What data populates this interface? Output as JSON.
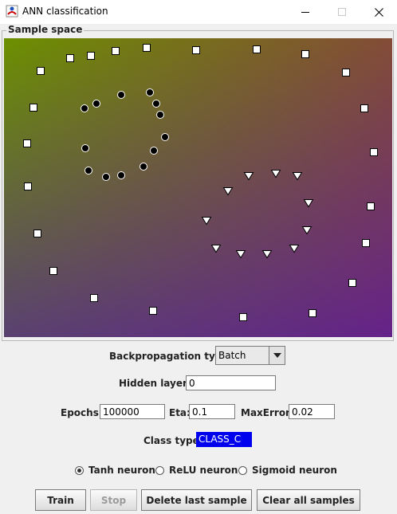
{
  "window": {
    "title": "ANN classification",
    "icon": "java-app-icon",
    "controls": [
      "minimize-icon",
      "maximize-icon",
      "close-icon"
    ]
  },
  "sample_panel": {
    "title": "Sample space",
    "gradient_colors": [
      "#6c9000",
      "#a02050",
      "#4b00cd"
    ],
    "markers": {
      "class_a": "black-dot",
      "class_b": "white-triangle",
      "class_c": "white-square"
    }
  },
  "controls": {
    "backprop_label": "Backpropagation type:",
    "backprop_value": "Batch",
    "hidden_layers_label": "Hidden layers:",
    "hidden_layers_value": "0",
    "epochs_label": "Epochs:",
    "epochs_value": "100000",
    "eta_label": "Eta:",
    "eta_value": "0.1",
    "max_error_label": "MaxError:",
    "max_error_value": "0.02",
    "class_type_label": "Class type:",
    "class_type_value": "CLASS_C",
    "neurons": [
      {
        "label": "Tanh neuron",
        "selected": true
      },
      {
        "label": "ReLU neuron",
        "selected": false
      },
      {
        "label": "Sigmoid neuron",
        "selected": false
      }
    ]
  },
  "buttons": {
    "train": "Train",
    "stop": "Stop",
    "delete_last": "Delete last sample",
    "clear_all": "Clear all samples"
  }
}
